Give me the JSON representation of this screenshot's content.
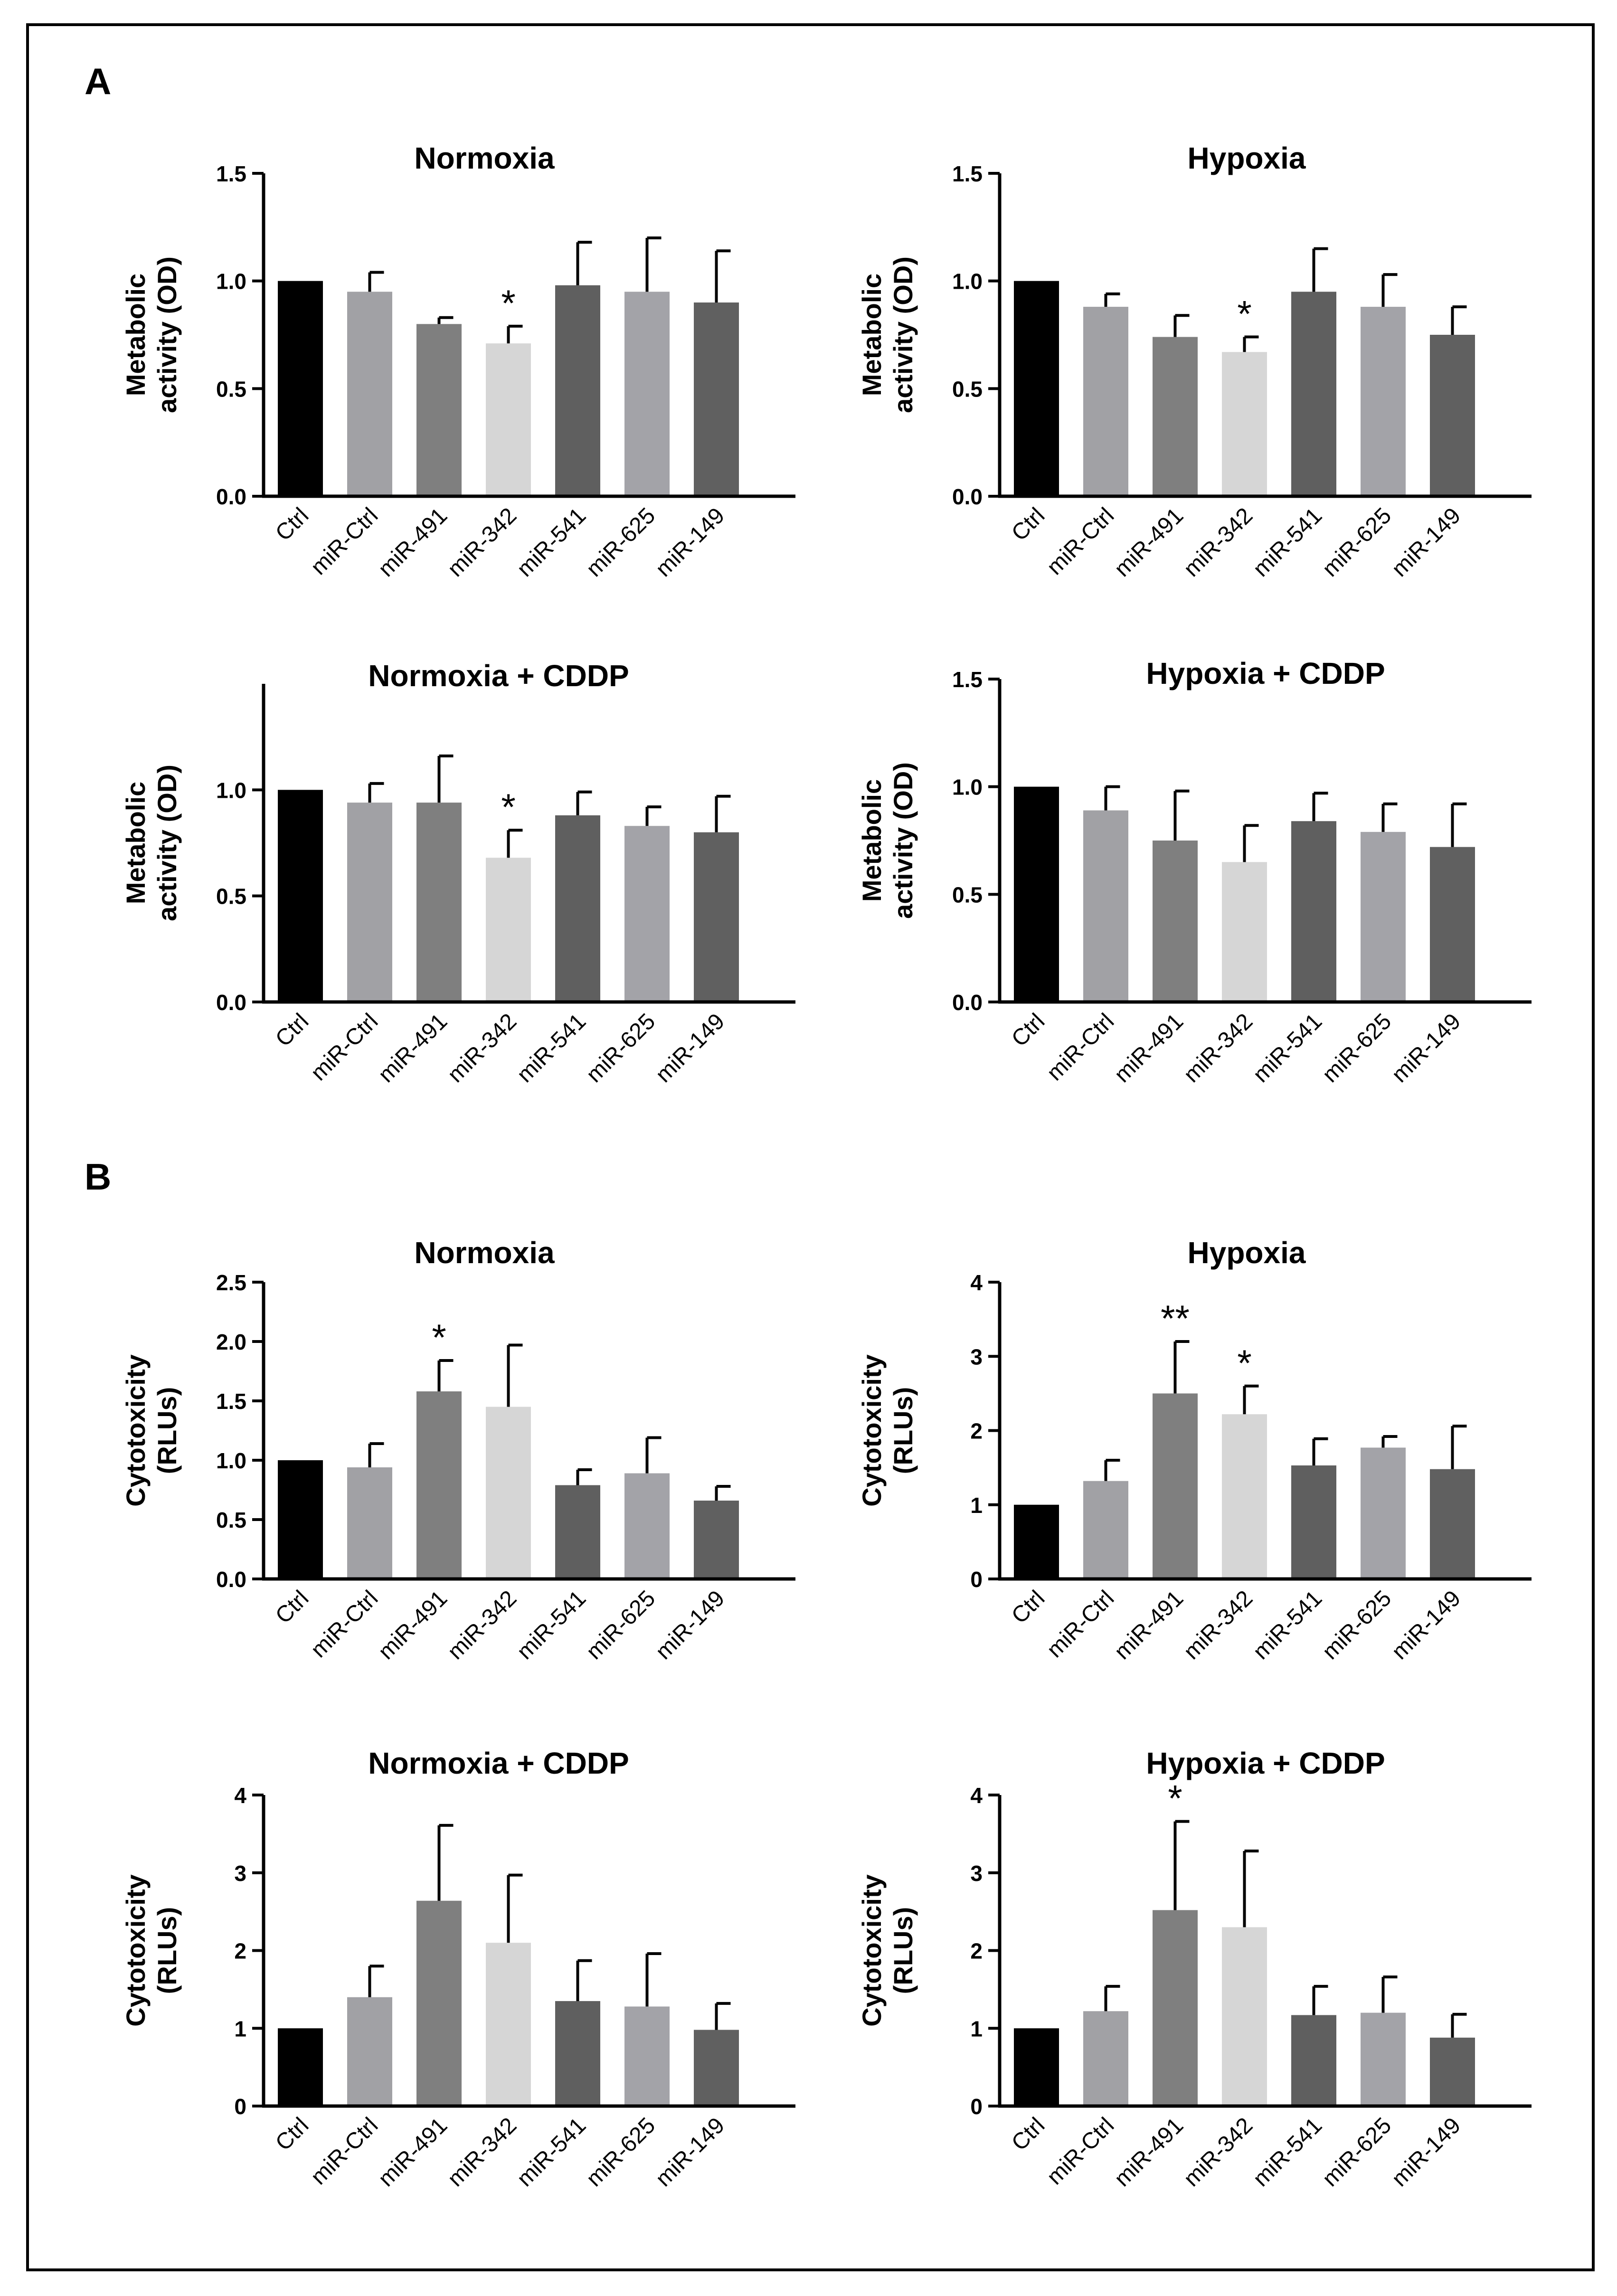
{
  "panel_labels": [
    "A",
    "B"
  ],
  "colors": {
    "Ctrl": "#000000",
    "miR-Ctrl": "#a1a1a5",
    "miR-491": "#7f7f7f",
    "miR-342": "#d6d6d6",
    "miR-541": "#5f5f5f",
    "miR-625": "#a3a3a8",
    "miR-149": "#606060"
  },
  "chart_data": [
    {
      "type": "bar",
      "panel": "A",
      "title": "Normoxia",
      "ylabel_lines": [
        "Metabolic",
        "activity (OD)"
      ],
      "categories": [
        "Ctrl",
        "miR-Ctrl",
        "miR-491",
        "miR-342",
        "miR-541",
        "miR-625",
        "miR-149"
      ],
      "values": [
        1.0,
        0.95,
        0.8,
        0.71,
        0.98,
        0.95,
        0.9
      ],
      "errors": [
        0.0,
        0.09,
        0.03,
        0.08,
        0.2,
        0.25,
        0.24
      ],
      "significance": [
        "",
        "",
        "",
        "*",
        "",
        "",
        ""
      ],
      "ylim": [
        0,
        1.5
      ],
      "yticks": [
        0,
        0.5,
        1.0,
        1.5
      ],
      "ytick_labels": [
        "0.0",
        "0.5",
        "1.0",
        "1.5"
      ]
    },
    {
      "type": "bar",
      "panel": "A",
      "title": "Hypoxia",
      "ylabel_lines": [
        "Metabolic",
        "activity (OD)"
      ],
      "categories": [
        "Ctrl",
        "miR-Ctrl",
        "miR-491",
        "miR-342",
        "miR-541",
        "miR-625",
        "miR-149"
      ],
      "values": [
        1.0,
        0.88,
        0.74,
        0.67,
        0.95,
        0.88,
        0.75
      ],
      "errors": [
        0.0,
        0.06,
        0.1,
        0.07,
        0.2,
        0.15,
        0.13
      ],
      "significance": [
        "",
        "",
        "",
        "*",
        "",
        "",
        ""
      ],
      "ylim": [
        0,
        1.5
      ],
      "yticks": [
        0,
        0.5,
        1.0,
        1.5
      ],
      "ytick_labels": [
        "0.0",
        "0.5",
        "1.0",
        "1.5"
      ]
    },
    {
      "type": "bar",
      "panel": "A",
      "title": "Normoxia + CDDP",
      "ylabel_lines": [
        "Metabolic",
        "activity (OD)"
      ],
      "categories": [
        "Ctrl",
        "miR-Ctrl",
        "miR-491",
        "miR-342",
        "miR-541",
        "miR-625",
        "miR-149"
      ],
      "values": [
        1.0,
        0.94,
        0.94,
        0.68,
        0.88,
        0.83,
        0.8
      ],
      "errors": [
        0.0,
        0.09,
        0.22,
        0.13,
        0.11,
        0.09,
        0.17
      ],
      "significance": [
        "",
        "",
        "",
        "*",
        "",
        "",
        ""
      ],
      "ylim": [
        0,
        1.5
      ],
      "yticks": [
        0,
        0.5,
        1.0
      ],
      "ytick_labels": [
        "0.0",
        "0.5",
        "1.0"
      ]
    },
    {
      "type": "bar",
      "panel": "A",
      "title": "Hypoxia + CDDP",
      "ylabel_lines": [
        "Metabolic",
        "activity (OD)"
      ],
      "categories": [
        "Ctrl",
        "miR-Ctrl",
        "miR-491",
        "miR-342",
        "miR-541",
        "miR-625",
        "miR-149"
      ],
      "values": [
        1.0,
        0.89,
        0.75,
        0.65,
        0.84,
        0.79,
        0.72
      ],
      "errors": [
        0.0,
        0.11,
        0.23,
        0.17,
        0.13,
        0.13,
        0.2
      ],
      "significance": [
        "",
        "",
        "",
        "",
        "",
        "",
        ""
      ],
      "ylim": [
        0,
        1.5
      ],
      "yticks": [
        0,
        0.5,
        1.0,
        1.5
      ],
      "ytick_labels": [
        "0.0",
        "0.5",
        "1.0",
        "1.5"
      ]
    },
    {
      "type": "bar",
      "panel": "B",
      "title": "Normoxia",
      "ylabel_lines": [
        "Cytotoxicity",
        "(RLUs)"
      ],
      "categories": [
        "Ctrl",
        "miR-Ctrl",
        "miR-491",
        "miR-342",
        "miR-541",
        "miR-625",
        "miR-149"
      ],
      "values": [
        1.0,
        0.94,
        1.58,
        1.45,
        0.79,
        0.89,
        0.66
      ],
      "errors": [
        0.0,
        0.2,
        0.26,
        0.52,
        0.13,
        0.3,
        0.12
      ],
      "significance": [
        "",
        "",
        "*",
        "",
        "",
        "",
        ""
      ],
      "ylim": [
        0,
        2.5
      ],
      "yticks": [
        0,
        0.5,
        1.0,
        1.5,
        2.0,
        2.5
      ],
      "ytick_labels": [
        "0.0",
        "0.5",
        "1.0",
        "1.5",
        "2.0",
        "2.5"
      ]
    },
    {
      "type": "bar",
      "panel": "B",
      "title": "Hypoxia",
      "ylabel_lines": [
        "Cytotoxicity",
        "(RLUs)"
      ],
      "categories": [
        "Ctrl",
        "miR-Ctrl",
        "miR-491",
        "miR-342",
        "miR-541",
        "miR-625",
        "miR-149"
      ],
      "values": [
        1.0,
        1.32,
        2.5,
        2.22,
        1.53,
        1.77,
        1.48
      ],
      "errors": [
        0.0,
        0.28,
        0.7,
        0.38,
        0.36,
        0.15,
        0.58
      ],
      "significance": [
        "",
        "",
        "**",
        "*",
        "",
        "",
        ""
      ],
      "ylim": [
        0,
        4
      ],
      "yticks": [
        0,
        1,
        2,
        3,
        4
      ],
      "ytick_labels": [
        "0",
        "1",
        "2",
        "3",
        "4"
      ]
    },
    {
      "type": "bar",
      "panel": "B",
      "title": "Normoxia + CDDP",
      "ylabel_lines": [
        "Cytotoxicity",
        "(RLUs)"
      ],
      "categories": [
        "Ctrl",
        "miR-Ctrl",
        "miR-491",
        "miR-342",
        "miR-541",
        "miR-625",
        "miR-149"
      ],
      "values": [
        1.0,
        1.4,
        2.64,
        2.1,
        1.35,
        1.28,
        0.98
      ],
      "errors": [
        0.0,
        0.4,
        0.97,
        0.87,
        0.52,
        0.68,
        0.34
      ],
      "significance": [
        "",
        "",
        "",
        "",
        "",
        "",
        ""
      ],
      "ylim": [
        0,
        4
      ],
      "yticks": [
        0,
        1,
        2,
        3,
        4
      ],
      "ytick_labels": [
        "0",
        "1",
        "2",
        "3",
        "4"
      ]
    },
    {
      "type": "bar",
      "panel": "B",
      "title": "Hypoxia + CDDP",
      "ylabel_lines": [
        "Cytotoxicity",
        "(RLUs)"
      ],
      "categories": [
        "Ctrl",
        "miR-Ctrl",
        "miR-491",
        "miR-342",
        "miR-541",
        "miR-625",
        "miR-149"
      ],
      "values": [
        1.0,
        1.22,
        2.52,
        2.3,
        1.17,
        1.2,
        0.88
      ],
      "errors": [
        0.0,
        0.32,
        1.14,
        0.98,
        0.37,
        0.46,
        0.3
      ],
      "significance": [
        "",
        "",
        "*",
        "",
        "",
        "",
        ""
      ],
      "ylim": [
        0,
        4
      ],
      "yticks": [
        0,
        1,
        2,
        3,
        4
      ],
      "ytick_labels": [
        "0",
        "1",
        "2",
        "3",
        "4"
      ]
    }
  ]
}
